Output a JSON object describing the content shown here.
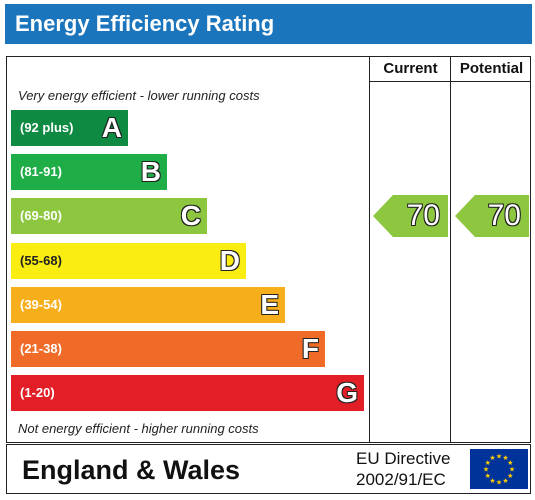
{
  "header": {
    "title": "Energy Efficiency Rating"
  },
  "columns": {
    "current": "Current",
    "potential": "Potential"
  },
  "notes": {
    "top": "Very energy efficient - lower running costs",
    "bottom": "Not energy efficient - higher running costs"
  },
  "footer": {
    "region": "England & Wales",
    "directive_line1": "EU Directive",
    "directive_line2": "2002/91/EC",
    "flag_icon": "eu-flag-icon"
  },
  "chart_data": {
    "type": "bar",
    "title": "Energy Efficiency Rating",
    "categories": [
      "A",
      "B",
      "C",
      "D",
      "E",
      "F",
      "G"
    ],
    "bands": [
      {
        "letter": "A",
        "range": "(92 plus)",
        "color": "#0e8a43"
      },
      {
        "letter": "B",
        "range": "(81-91)",
        "color": "#1fad48"
      },
      {
        "letter": "C",
        "range": "(69-80)",
        "color": "#8dc63f"
      },
      {
        "letter": "D",
        "range": "(55-68)",
        "color": "#f9ed12"
      },
      {
        "letter": "E",
        "range": "(39-54)",
        "color": "#f7ae1b"
      },
      {
        "letter": "F",
        "range": "(21-38)",
        "color": "#ef6b27"
      },
      {
        "letter": "G",
        "range": "(1-20)",
        "color": "#e21f26"
      }
    ],
    "current": {
      "value": 70,
      "band": "C",
      "color": "#8dc63f"
    },
    "potential": {
      "value": 70,
      "band": "C",
      "color": "#8dc63f"
    }
  }
}
